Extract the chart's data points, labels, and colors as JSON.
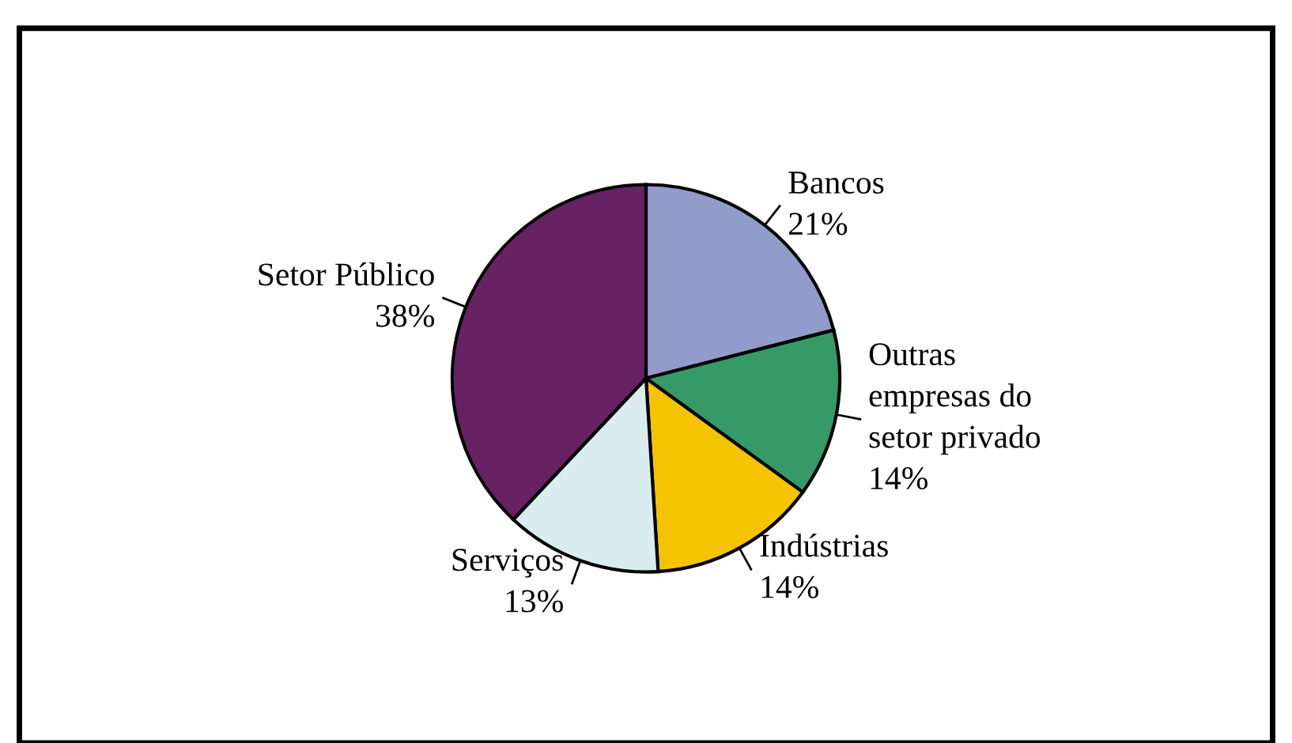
{
  "chart_data": {
    "type": "pie",
    "categories": [
      "Bancos",
      "Outras\nempresas do\nsetor privado",
      "Indústrias",
      "Serviços",
      "Setor Público"
    ],
    "values": [
      21,
      14,
      14,
      13,
      38
    ],
    "value_labels": [
      "21%",
      "14%",
      "14%",
      "13%",
      "38%"
    ],
    "colors": [
      "#919ccb",
      "#359a68",
      "#f5c400",
      "#d9ecee",
      "#662262"
    ],
    "legend": false
  }
}
